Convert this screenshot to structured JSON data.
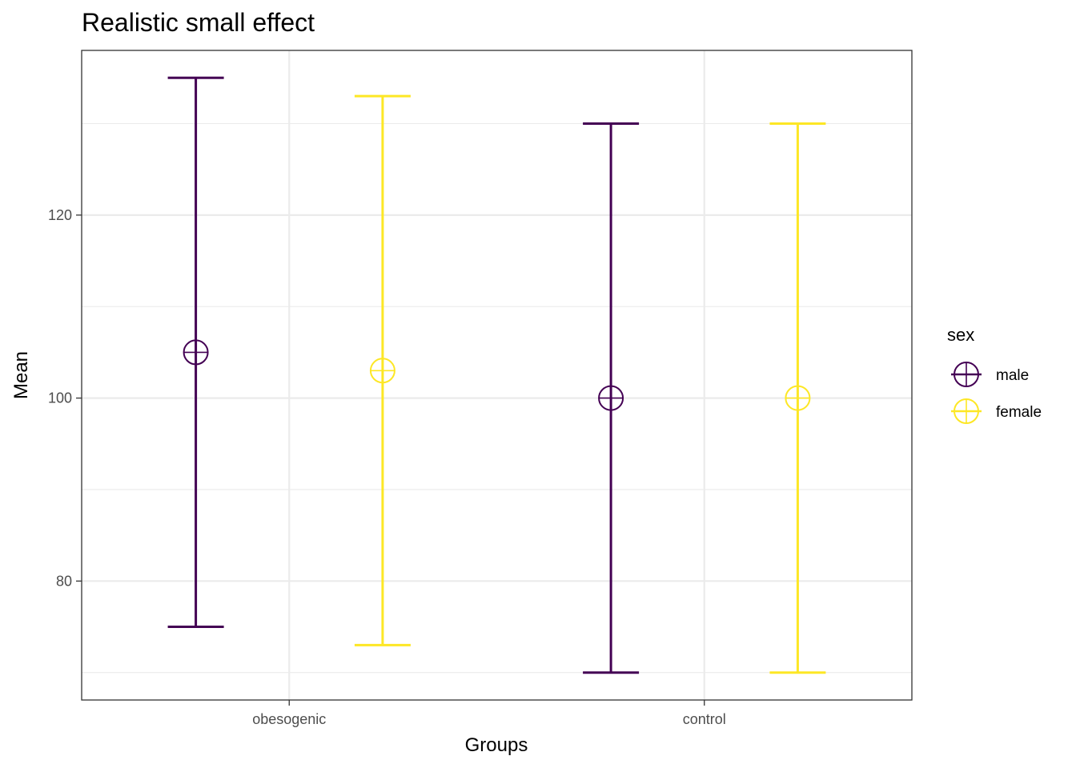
{
  "chart_data": {
    "type": "errorbar",
    "title": "Realistic small effect",
    "xlabel": "Groups",
    "ylabel": "Mean",
    "categories": [
      "obesogenic",
      "control"
    ],
    "ylim": [
      67,
      138
    ],
    "yticks": [
      80,
      100,
      120
    ],
    "grid": true,
    "legend": {
      "title": "sex",
      "position": "right"
    },
    "series": [
      {
        "name": "male",
        "color": "#440154",
        "points": [
          {
            "category": "obesogenic",
            "mean": 105,
            "lower": 75,
            "upper": 135
          },
          {
            "category": "control",
            "mean": 100,
            "lower": 70,
            "upper": 130
          }
        ]
      },
      {
        "name": "female",
        "color": "#FDE725",
        "points": [
          {
            "category": "obesogenic",
            "mean": 103,
            "lower": 73,
            "upper": 133
          },
          {
            "category": "control",
            "mean": 100,
            "lower": 70,
            "upper": 130
          }
        ]
      }
    ]
  }
}
